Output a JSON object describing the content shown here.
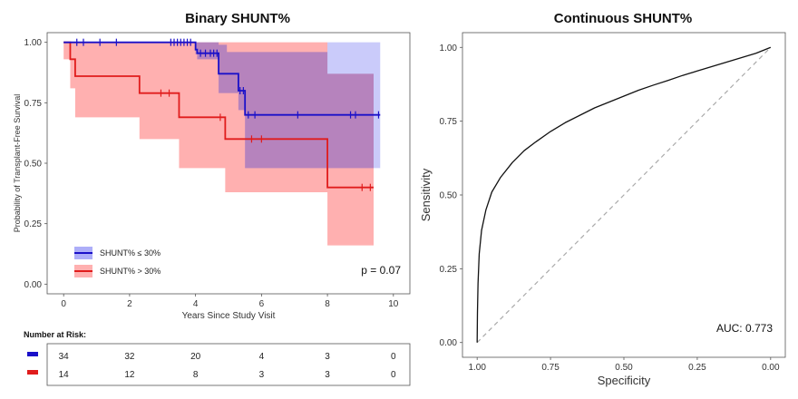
{
  "chart_data": [
    {
      "type": "line",
      "subtype": "kaplan-meier",
      "title": "Binary SHUNT%",
      "xlabel": "Years Since Study Visit",
      "ylabel": "Probability of Transplant-Free Survival",
      "xlim": [
        -0.5,
        10.5
      ],
      "ylim": [
        -0.04,
        1.04
      ],
      "x_ticks": [
        0,
        2,
        4,
        6,
        8,
        10
      ],
      "x_tick_labels": [
        "0",
        "2",
        "4",
        "6",
        "8",
        "10"
      ],
      "y_ticks": [
        0,
        0.25,
        0.5,
        0.75,
        1.0
      ],
      "y_tick_labels": [
        "0.00",
        "0.25",
        "0.50",
        "0.75",
        "1.00"
      ],
      "annotation": "p = 0.07",
      "series": [
        {
          "name": "SHUNT% ≤ 30%",
          "color": "#1a10c9",
          "band_color": "#8a8cf5",
          "steps": [
            [
              0,
              1.0
            ],
            [
              4.0,
              0.97
            ],
            [
              4.05,
              0.955
            ],
            [
              4.7,
              0.87
            ],
            [
              5.3,
              0.8
            ],
            [
              5.5,
              0.7
            ],
            [
              9.6,
              0.7
            ]
          ],
          "band_lower": [
            [
              0,
              1.0
            ],
            [
              4.0,
              0.95
            ],
            [
              4.05,
              0.93
            ],
            [
              4.7,
              0.79
            ],
            [
              5.3,
              0.72
            ],
            [
              5.5,
              0.48
            ],
            [
              9.6,
              0.48
            ]
          ],
          "band_upper": [
            [
              0,
              1.0
            ],
            [
              4.0,
              1.0
            ],
            [
              4.05,
              1.0
            ],
            [
              4.7,
              0.99
            ],
            [
              4.95,
              0.96
            ],
            [
              8.0,
              1.0
            ],
            [
              9.6,
              1.0
            ]
          ],
          "censor": [
            0.4,
            0.6,
            1.1,
            1.6,
            3.25,
            3.35,
            3.45,
            3.55,
            3.65,
            3.75,
            3.85,
            4.15,
            4.3,
            4.45,
            4.55,
            4.65,
            5.35,
            5.45,
            5.6,
            5.8,
            7.1,
            8.7,
            8.85,
            9.55
          ],
          "risk_counts": [
            34,
            32,
            20,
            4,
            3,
            0
          ]
        },
        {
          "name": "SHUNT% > 30%",
          "color": "#e01c1c",
          "band_color": "#ffb0b0",
          "steps": [
            [
              0,
              1.0
            ],
            [
              0.2,
              0.93
            ],
            [
              0.35,
              0.86
            ],
            [
              2.3,
              0.79
            ],
            [
              3.5,
              0.69
            ],
            [
              4.9,
              0.6
            ],
            [
              8.0,
              0.4
            ],
            [
              9.4,
              0.4
            ]
          ],
          "band_lower": [
            [
              0,
              0.93
            ],
            [
              0.2,
              0.81
            ],
            [
              0.35,
              0.69
            ],
            [
              2.3,
              0.6
            ],
            [
              3.5,
              0.48
            ],
            [
              4.9,
              0.38
            ],
            [
              8.0,
              0.16
            ],
            [
              9.4,
              0.16
            ]
          ],
          "band_upper": [
            [
              0,
              1.0
            ],
            [
              8.0,
              0.87
            ],
            [
              9.4,
              0.87
            ]
          ],
          "censor": [
            2.95,
            3.2,
            4.75,
            5.7,
            6.0,
            9.05,
            9.3
          ],
          "risk_counts": [
            14,
            12,
            8,
            3,
            3,
            0
          ]
        }
      ],
      "risk_table": {
        "title": "Number at Risk:",
        "times": [
          0,
          2,
          4,
          6,
          8,
          10
        ]
      }
    },
    {
      "type": "line",
      "subtype": "roc",
      "title": "Continuous SHUNT%",
      "xlabel": "Specificity",
      "ylabel": "Sensitivity",
      "xlim": [
        1.05,
        -0.05
      ],
      "ylim": [
        -0.05,
        1.05
      ],
      "x_ticks": [
        1.0,
        0.75,
        0.5,
        0.25,
        0.0
      ],
      "x_tick_labels": [
        "1.00",
        "0.75",
        "0.50",
        "0.25",
        "0.00"
      ],
      "y_ticks": [
        0,
        0.25,
        0.5,
        0.75,
        1.0
      ],
      "y_tick_labels": [
        "0.00",
        "0.25",
        "0.50",
        "0.75",
        "1.00"
      ],
      "annotation": "AUC: 0.773",
      "curve": {
        "specificity": [
          1.0,
          0.999,
          0.997,
          0.993,
          0.985,
          0.97,
          0.95,
          0.92,
          0.88,
          0.84,
          0.8,
          0.75,
          0.7,
          0.65,
          0.6,
          0.55,
          0.5,
          0.45,
          0.4,
          0.35,
          0.3,
          0.25,
          0.2,
          0.15,
          0.1,
          0.05,
          0.0
        ],
        "sensitivity": [
          0.0,
          0.1,
          0.2,
          0.3,
          0.38,
          0.45,
          0.51,
          0.56,
          0.61,
          0.65,
          0.68,
          0.715,
          0.745,
          0.77,
          0.795,
          0.815,
          0.835,
          0.855,
          0.872,
          0.888,
          0.905,
          0.92,
          0.935,
          0.95,
          0.965,
          0.98,
          1.0
        ]
      },
      "reference": [
        [
          1.0,
          0.0
        ],
        [
          0.0,
          1.0
        ]
      ]
    }
  ]
}
